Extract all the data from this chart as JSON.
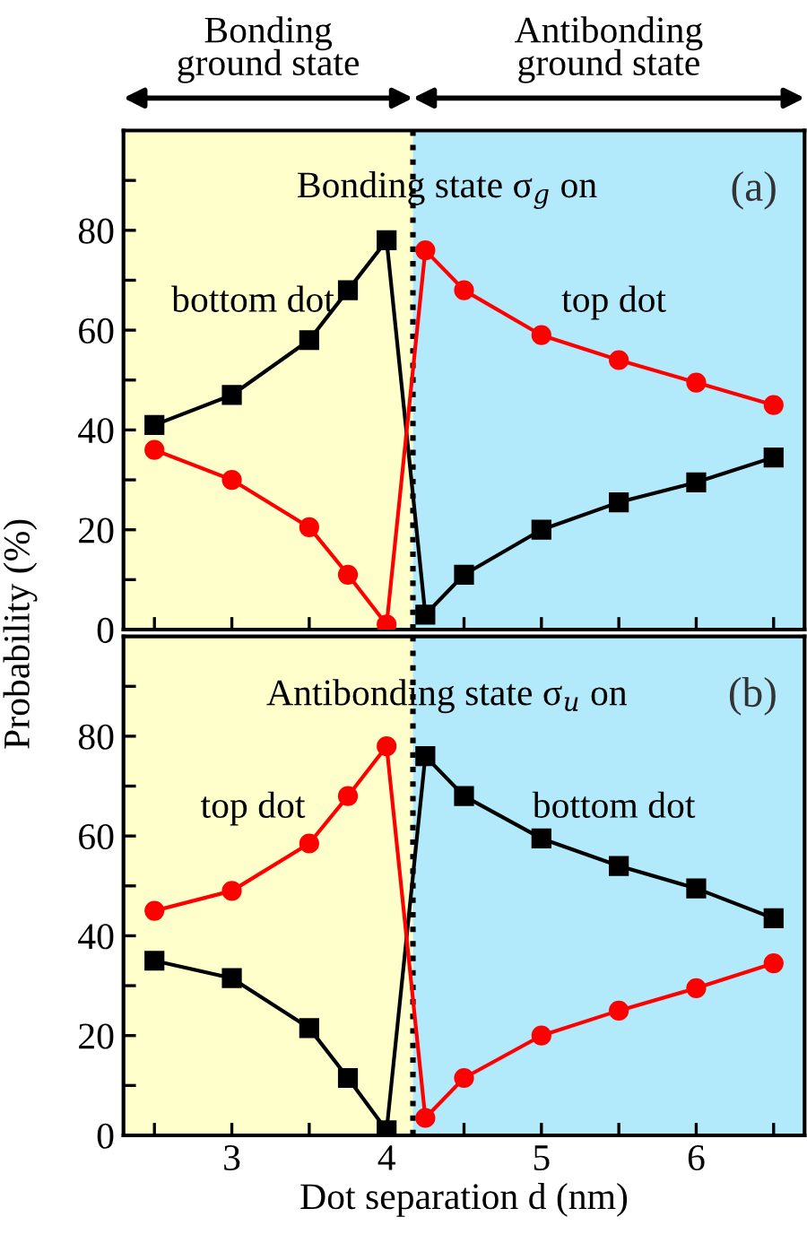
{
  "chart_data": [
    {
      "type": "line",
      "ylabel": "Probability (%)",
      "tick_labels": "y",
      "annotations": [
        "Bonding\nground state",
        "Antibonding\nground state",
        "Bonding state σ$_{g}$ on",
        "(a)",
        "bottom dot",
        "top dot"
      ],
      "x": [
        2.5,
        3,
        3.5,
        3.75,
        4,
        4.25,
        4.5,
        5,
        5.5,
        6,
        6.5
      ],
      "series": [
        {
          "color": "#000000",
          "marker": "square",
          "values": [
            41,
            47,
            58,
            68,
            78,
            3,
            11,
            20,
            25.5,
            29.5,
            34.5
          ]
        },
        {
          "color": "#ff0000",
          "marker": "circle",
          "values": [
            36,
            30,
            20.5,
            11,
            1,
            76,
            68,
            59,
            54,
            49.5,
            45
          ]
        }
      ],
      "xlim": [
        2.3,
        6.7
      ],
      "xticks": [
        {
          "value": 2.5,
          "label": null
        },
        {
          "value": 3,
          "label": null
        },
        {
          "value": 3.5,
          "label": null
        },
        {
          "value": 4,
          "label": null
        },
        {
          "value": 4.5,
          "label": null
        },
        {
          "value": 5,
          "label": null
        },
        {
          "value": 5.5,
          "label": null
        },
        {
          "value": 6,
          "label": null
        },
        {
          "value": 6.5,
          "label": null
        }
      ],
      "ylim": [
        0,
        100
      ],
      "yticks": [
        0,
        {
          "value": 10,
          "label": null
        },
        20,
        {
          "value": 30,
          "label": null
        },
        40,
        {
          "value": 50,
          "label": null
        },
        60,
        {
          "value": 70,
          "label": null
        },
        80,
        {
          "value": 90,
          "label": null
        }
      ],
      "bands": [
        {
          "axis": "x",
          "from": 2.3,
          "to": 4.17,
          "color": "#ffffcc"
        },
        {
          "axis": "x",
          "from": 4.17,
          "to": 6.7,
          "color": "#b3eafb"
        }
      ],
      "ref_lines": [
        {
          "axis": "x",
          "value": 4.17,
          "color": "#000000",
          "line_style": "dotted"
        }
      ],
      "grid": false,
      "legend": false
    },
    {
      "type": "line",
      "xlabel": "Dot separation d (nm)",
      "annotations": [
        "Antibonding state σ$_{u}$ on",
        "(b)",
        "top dot",
        "bottom dot"
      ],
      "x": [
        2.5,
        3,
        3.5,
        3.75,
        4,
        4.25,
        4.5,
        5,
        5.5,
        6,
        6.5
      ],
      "series": [
        {
          "color": "#000000",
          "marker": "square",
          "values": [
            35,
            31.5,
            21.5,
            11.5,
            1,
            76,
            68,
            59.5,
            54,
            49.5,
            43.5
          ]
        },
        {
          "color": "#ff0000",
          "marker": "circle",
          "values": [
            45,
            49,
            58.5,
            68,
            78,
            3.5,
            11.5,
            20,
            25,
            29.5,
            34.5
          ]
        }
      ],
      "xlim": [
        2.3,
        6.7
      ],
      "xticks": [
        {
          "value": 2.5,
          "label": null
        },
        3,
        {
          "value": 3.5,
          "label": null
        },
        4,
        {
          "value": 4.5,
          "label": null
        },
        5,
        {
          "value": 5.5,
          "label": null
        },
        6,
        {
          "value": 6.5,
          "label": null
        }
      ],
      "ylim": [
        0,
        100
      ],
      "yticks": [
        0,
        {
          "value": 10,
          "label": null
        },
        20,
        {
          "value": 30,
          "label": null
        },
        40,
        {
          "value": 50,
          "label": null
        },
        60,
        {
          "value": 70,
          "label": null
        },
        80,
        {
          "value": 90,
          "label": null
        }
      ],
      "bands": [
        {
          "axis": "x",
          "from": 2.3,
          "to": 4.17,
          "color": "#ffffcc"
        },
        {
          "axis": "x",
          "from": 4.17,
          "to": 6.7,
          "color": "#b3eafb"
        }
      ],
      "ref_lines": [
        {
          "axis": "x",
          "value": 4.17,
          "color": "#000000",
          "line_style": "dotted"
        }
      ],
      "grid": false,
      "legend": false
    }
  ]
}
